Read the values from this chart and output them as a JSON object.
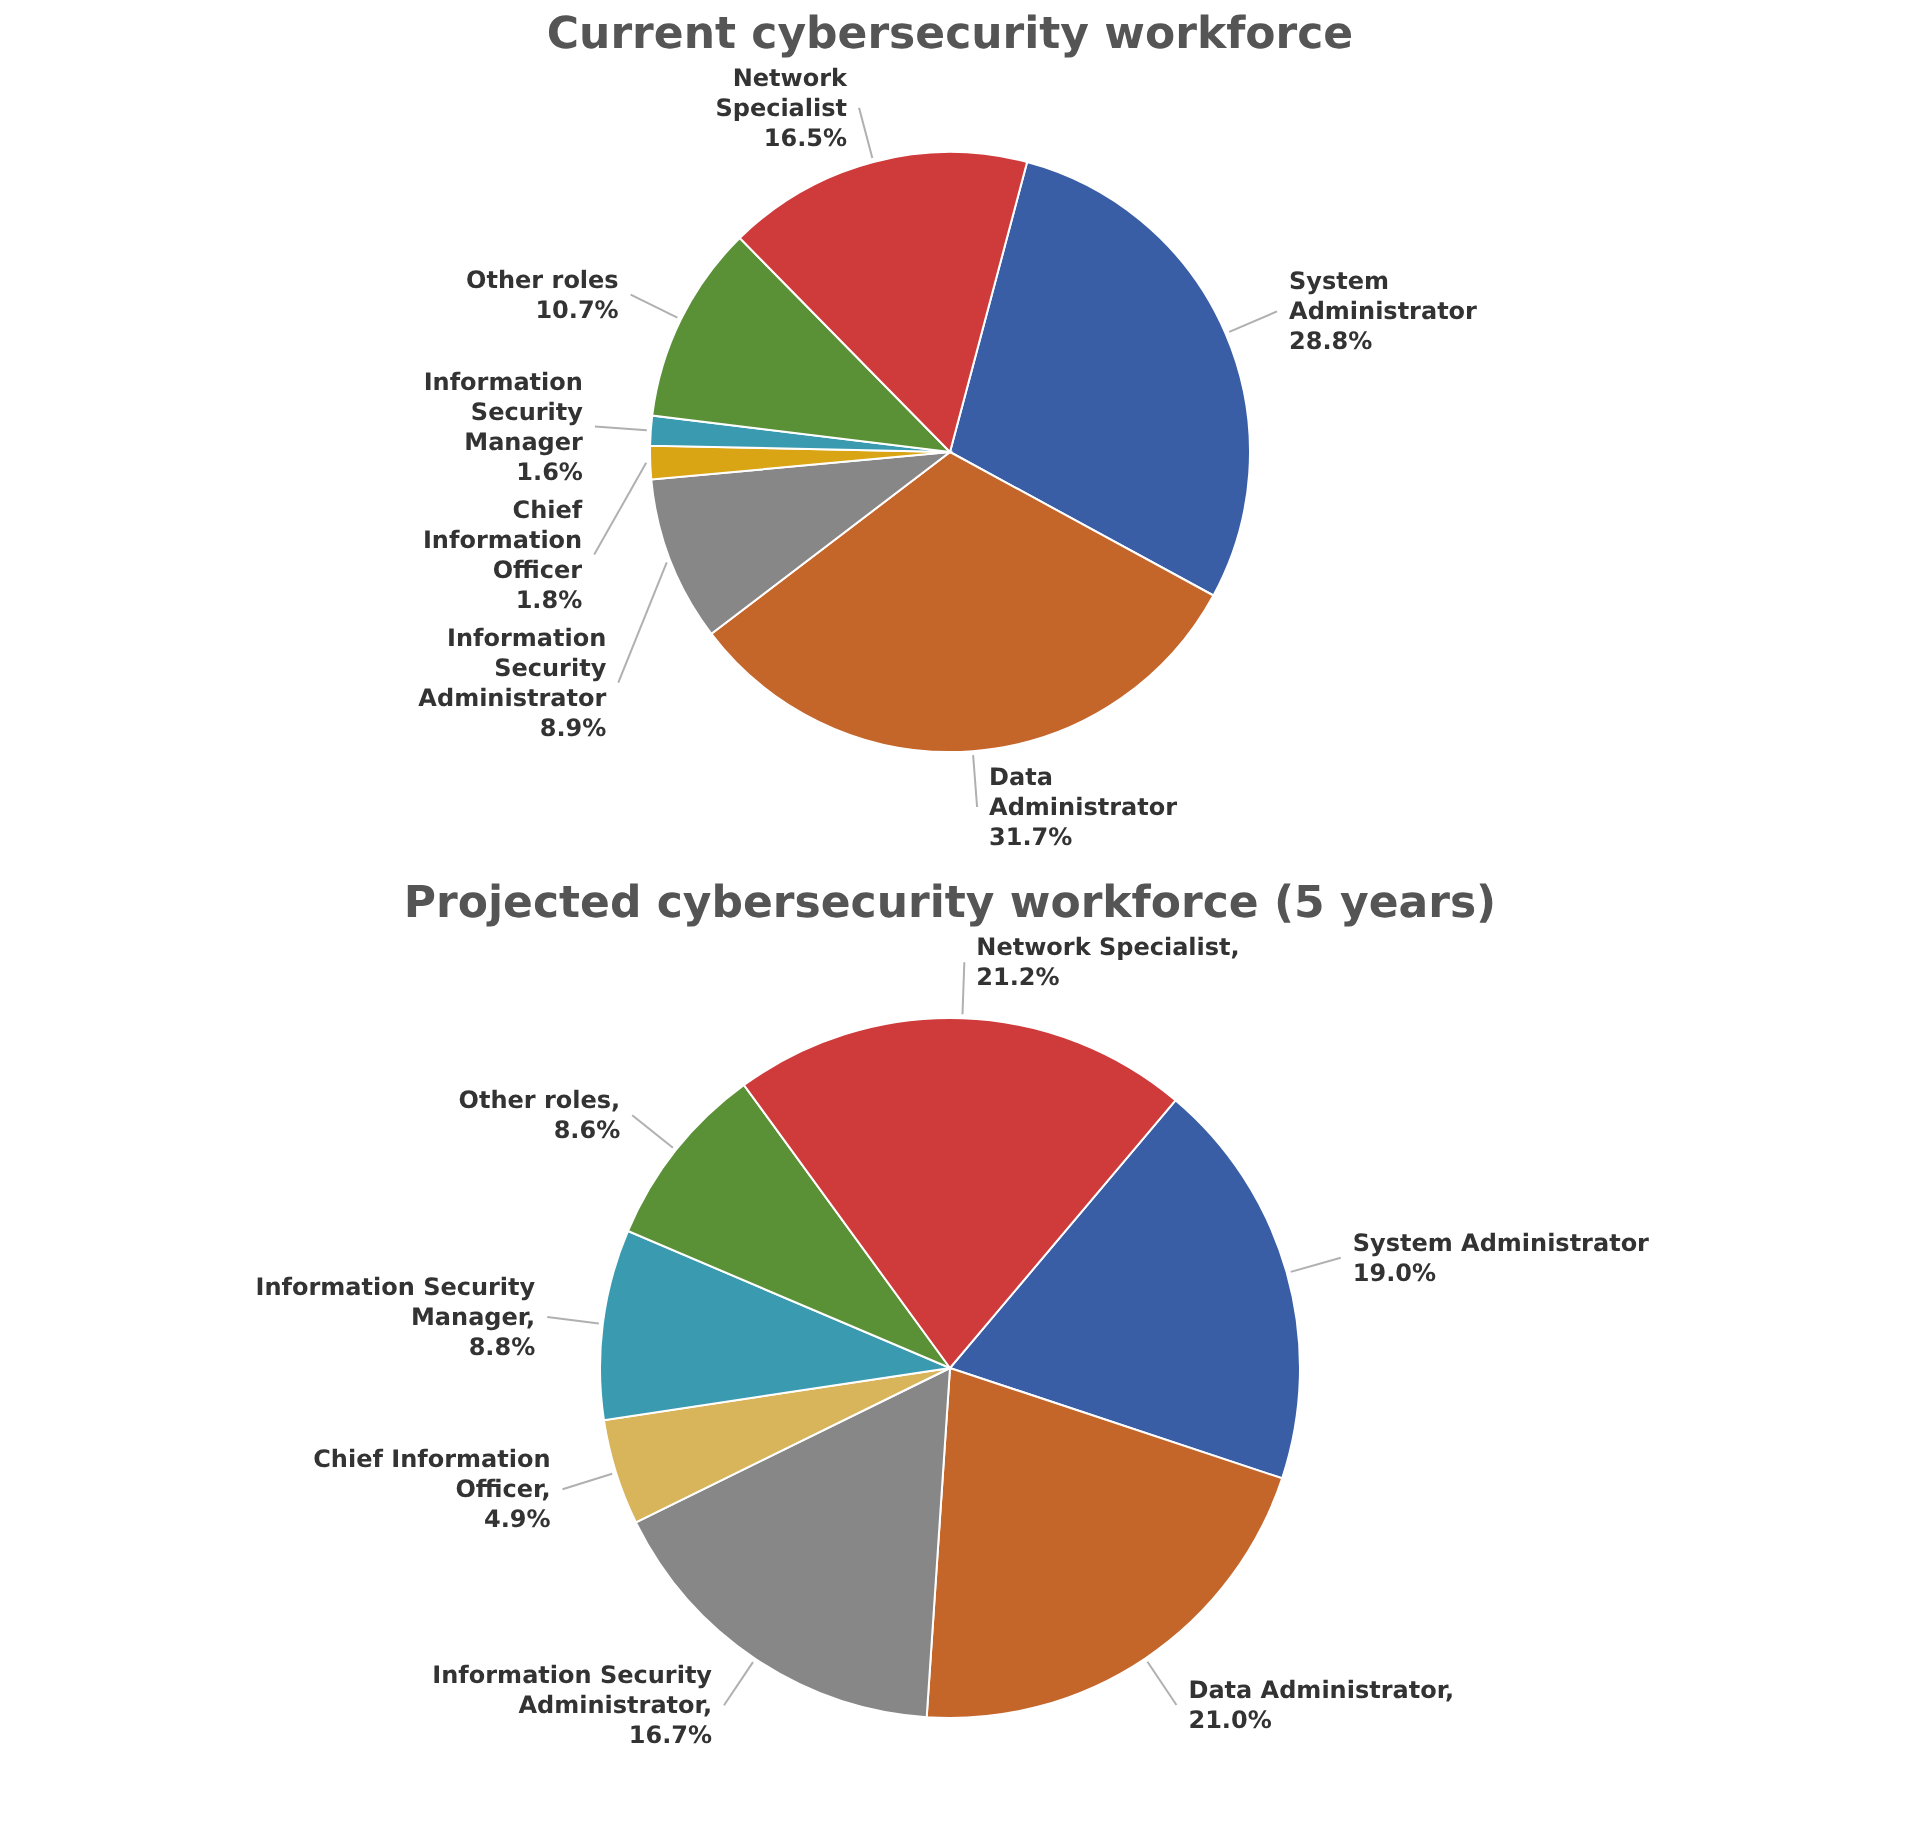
{
  "chart_data": [
    {
      "type": "pie",
      "title": "Current cybersecurity workforce",
      "categories": [
        "System Administrator",
        "Data Administrator",
        "Information Security Administrator",
        "Chief Information Officer",
        "Information Security Manager",
        "Other roles",
        "Network Specialist"
      ],
      "values": [
        28.8,
        31.7,
        8.9,
        1.8,
        1.6,
        10.7,
        16.5
      ],
      "value_labels": [
        "28.8%",
        "31.7%",
        "8.9%",
        "1.8%",
        "1.6%",
        "10.7%",
        "16.5%"
      ],
      "colors": [
        "#3a5ea6",
        "#c4652a",
        "#878787",
        "#d9a514",
        "#3a9ab0",
        "#5a9137",
        "#cf3a3a"
      ],
      "legend": false
    },
    {
      "type": "pie",
      "title": "Projected cybersecurity workforce (5 years)",
      "categories": [
        "System Administrator",
        "Data Administrator",
        "Information Security Administrator",
        "Chief Information Officer",
        "Information Security Manager",
        "Other roles",
        "Network Specialist"
      ],
      "values": [
        19.0,
        21.0,
        16.7,
        4.9,
        8.8,
        8.6,
        21.2
      ],
      "value_labels": [
        "19.0%",
        ", 21.0%",
        ", 16.7%",
        ", 4.9%",
        ", 8.8%",
        ", 8.6%",
        ", 21.2%"
      ],
      "colors": [
        "#3a5ea6",
        "#c4652a",
        "#878787",
        "#d8b45a",
        "#3a9ab0",
        "#5a9137",
        "#cf3a3a"
      ],
      "legend": false
    }
  ]
}
